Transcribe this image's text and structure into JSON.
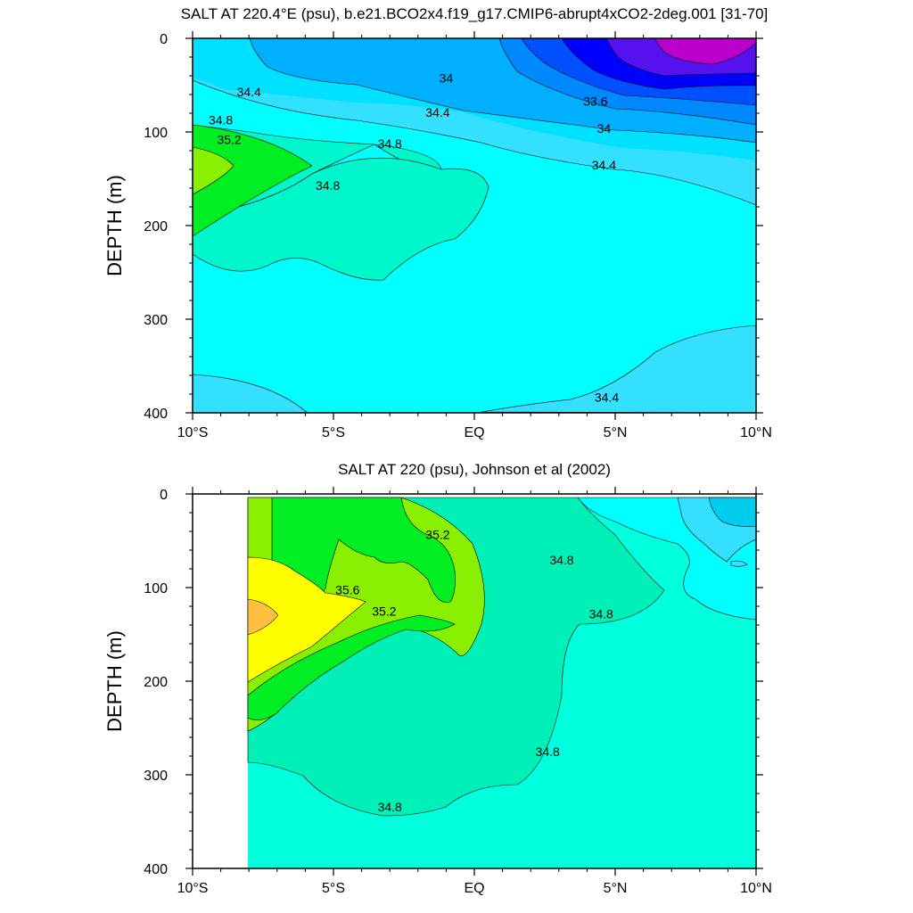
{
  "chart_data": [
    {
      "type": "contour",
      "title": "SALT AT 220.4°E (psu), b.e21.BCO2x4.f19_g17.CMIP6-abrupt4xCO2-2deg.001 [31-70]",
      "ylabel": "DEPTH (m)",
      "xlim": [
        -10,
        10
      ],
      "ylim": [
        400,
        0
      ],
      "x_ticks": [
        {
          "value": -10,
          "label": "10°S"
        },
        {
          "value": -5,
          "label": "5°S"
        },
        {
          "value": 0,
          "label": "EQ"
        },
        {
          "value": 5,
          "label": "5°N"
        },
        {
          "value": 10,
          "label": "10°N"
        }
      ],
      "y_ticks": [
        0,
        100,
        200,
        300,
        400
      ],
      "contour_labels": [
        {
          "text": "34.4",
          "x": -8.0,
          "y": 62
        },
        {
          "text": "34",
          "x": -1.0,
          "y": 47
        },
        {
          "text": "33.6",
          "x": 4.3,
          "y": 72
        },
        {
          "text": "34.8",
          "x": -9.0,
          "y": 92
        },
        {
          "text": "34.4",
          "x": -1.3,
          "y": 84
        },
        {
          "text": "34",
          "x": 4.6,
          "y": 101
        },
        {
          "text": "35.2",
          "x": -8.7,
          "y": 113
        },
        {
          "text": "34.8",
          "x": -3.0,
          "y": 117
        },
        {
          "text": "34.4",
          "x": 4.6,
          "y": 140
        },
        {
          "text": "34.8",
          "x": -5.2,
          "y": 162
        },
        {
          "text": "34.4",
          "x": 4.7,
          "y": 388
        }
      ]
    },
    {
      "type": "contour",
      "title": "SALT AT 220 (psu), Johnson et al (2002)",
      "ylabel": "DEPTH (m)",
      "xlim": [
        -10,
        10
      ],
      "ylim": [
        400,
        0
      ],
      "x_ticks": [
        {
          "value": -10,
          "label": "10°S"
        },
        {
          "value": -5,
          "label": "5°S"
        },
        {
          "value": 0,
          "label": "EQ"
        },
        {
          "value": 5,
          "label": "5°N"
        },
        {
          "value": 10,
          "label": "10°N"
        }
      ],
      "y_ticks": [
        0,
        100,
        200,
        300,
        400
      ],
      "contour_labels": [
        {
          "text": "35.2",
          "x": -1.3,
          "y": 48
        },
        {
          "text": "34.8",
          "x": 3.1,
          "y": 75
        },
        {
          "text": "35.6",
          "x": -4.5,
          "y": 107
        },
        {
          "text": "34.8",
          "x": 4.5,
          "y": 133
        },
        {
          "text": "35.2",
          "x": -3.2,
          "y": 130
        },
        {
          "text": "34.8",
          "x": 2.6,
          "y": 280
        },
        {
          "text": "34.8",
          "x": -3.0,
          "y": 339
        }
      ]
    }
  ]
}
